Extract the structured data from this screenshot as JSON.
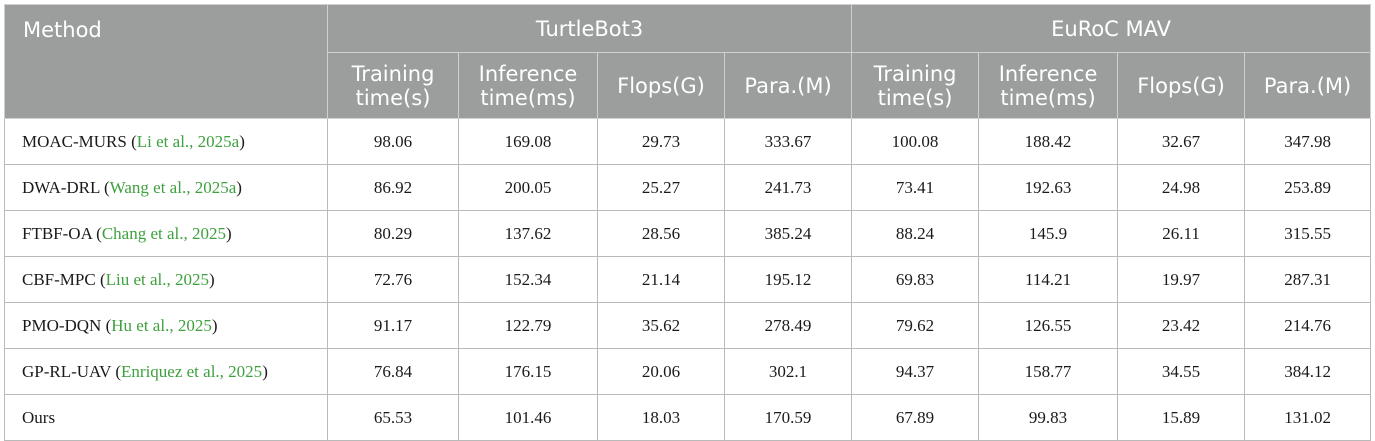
{
  "header": {
    "method_label": "Method",
    "groups": [
      "TurtleBot3",
      "EuRoC MAV"
    ],
    "columns": [
      [
        "Training",
        "time(s)"
      ],
      [
        "Inference",
        "time(ms)"
      ],
      [
        "Flops(G)",
        ""
      ],
      [
        "Para.(M)",
        ""
      ],
      [
        "Training",
        "time(s)"
      ],
      [
        "Inference",
        "time(ms)"
      ],
      [
        "Flops(G)",
        ""
      ],
      [
        "Para.(M)",
        ""
      ]
    ]
  },
  "rows": [
    {
      "name": "MOAC-MURS",
      "cite": "Li et al., 2025a",
      "values": [
        "98.06",
        "169.08",
        "29.73",
        "333.67",
        "100.08",
        "188.42",
        "32.67",
        "347.98"
      ]
    },
    {
      "name": "DWA-DRL",
      "cite": "Wang et al., 2025a",
      "values": [
        "86.92",
        "200.05",
        "25.27",
        "241.73",
        "73.41",
        "192.63",
        "24.98",
        "253.89"
      ]
    },
    {
      "name": "FTBF-OA",
      "cite": "Chang et al., 2025",
      "values": [
        "80.29",
        "137.62",
        "28.56",
        "385.24",
        "88.24",
        "145.9",
        "26.11",
        "315.55"
      ]
    },
    {
      "name": "CBF-MPC",
      "cite": "Liu et al., 2025",
      "values": [
        "72.76",
        "152.34",
        "21.14",
        "195.12",
        "69.83",
        "114.21",
        "19.97",
        "287.31"
      ]
    },
    {
      "name": "PMO-DQN",
      "cite": "Hu et al., 2025",
      "values": [
        "91.17",
        "122.79",
        "35.62",
        "278.49",
        "79.62",
        "126.55",
        "23.42",
        "214.76"
      ]
    },
    {
      "name": "GP-RL-UAV",
      "cite": "Enriquez et al., 2025",
      "values": [
        "76.84",
        "176.15",
        "20.06",
        "302.1",
        "94.37",
        "158.77",
        "34.55",
        "384.12"
      ]
    },
    {
      "name": "Ours",
      "cite": "",
      "values": [
        "65.53",
        "101.46",
        "18.03",
        "170.59",
        "67.89",
        "99.83",
        "15.89",
        "131.02"
      ]
    }
  ],
  "colors": {
    "header_bg": "#9b9e9d",
    "citation": "#3ea03e"
  }
}
